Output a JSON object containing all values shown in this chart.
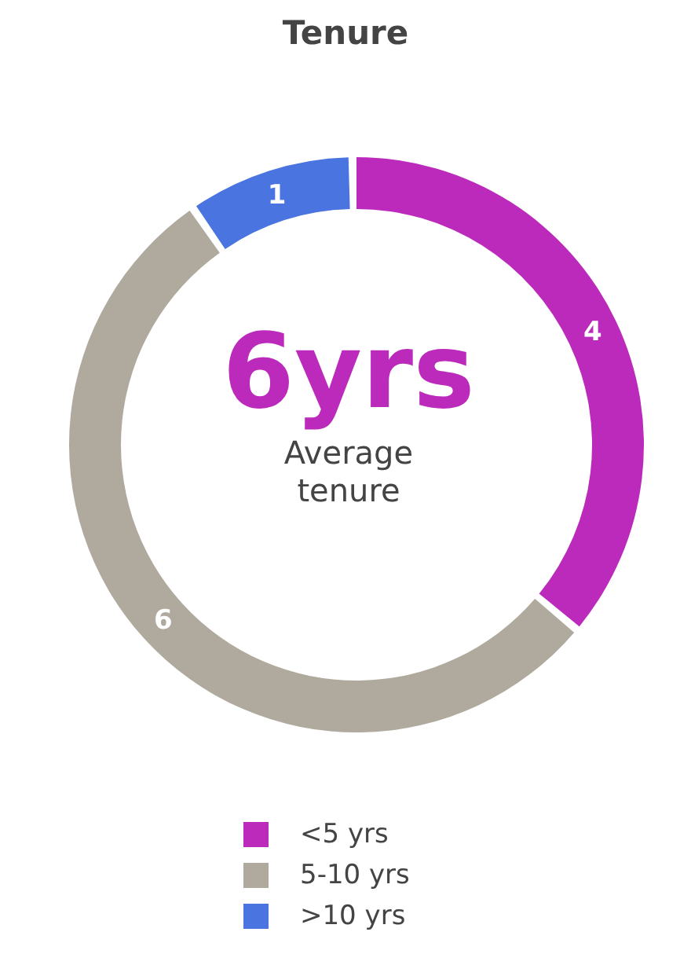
{
  "chart_data": {
    "type": "donut",
    "title": "Tenure",
    "categories": [
      "<5 yrs",
      "5-10 yrs",
      ">10 yrs"
    ],
    "values": [
      4,
      6,
      1
    ],
    "colors": [
      "#bc2abc",
      "#b0a99d",
      "#4a74e0"
    ],
    "data_labels": true,
    "legend": "bottom",
    "annotations": [
      "6yrs",
      "Average tenure"
    ]
  }
}
